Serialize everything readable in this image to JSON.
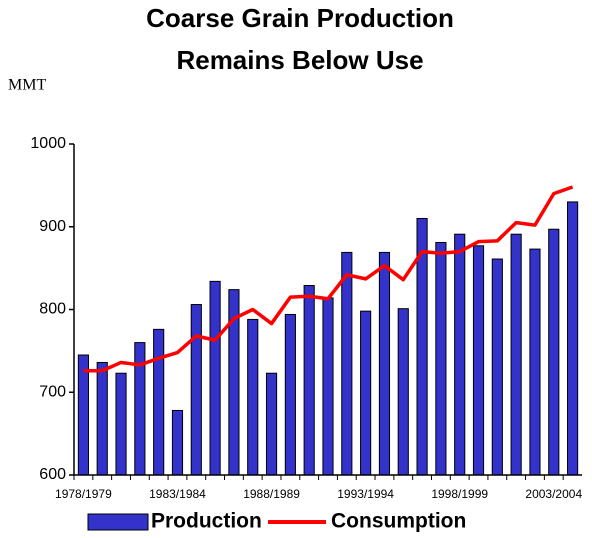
{
  "chart_data": {
    "type": "bar_line",
    "title": [
      "Coarse Grain Production",
      "Remains Below Use"
    ],
    "y_label": "MMT",
    "categories": [
      "1978/1979",
      null,
      null,
      null,
      null,
      "1983/1984",
      null,
      null,
      null,
      null,
      "1988/1989",
      null,
      null,
      null,
      null,
      "1993/1994",
      null,
      null,
      null,
      null,
      "1998/1999",
      null,
      null,
      null,
      null,
      "2003/2004",
      null
    ],
    "series": [
      {
        "name": "Production",
        "type": "bar",
        "color": "#3333cc",
        "values": [
          745,
          736,
          723,
          760,
          776,
          678,
          806,
          834,
          824,
          788,
          723,
          794,
          829,
          814,
          869,
          798,
          869,
          801,
          910,
          881,
          891,
          877,
          861,
          891,
          873,
          897,
          930
        ]
      },
      {
        "name": "Consumption",
        "type": "line",
        "color": "#ff0000",
        "values": [
          726,
          726,
          736,
          733,
          741,
          748,
          768,
          763,
          789,
          800,
          783,
          815,
          816,
          813,
          842,
          837,
          853,
          836,
          870,
          868,
          870,
          882,
          883,
          905,
          902,
          940,
          948
        ]
      }
    ],
    "ylim": [
      600,
      1000
    ],
    "yticks": [
      600,
      700,
      800,
      900,
      1000
    ],
    "legend": "bottom"
  }
}
